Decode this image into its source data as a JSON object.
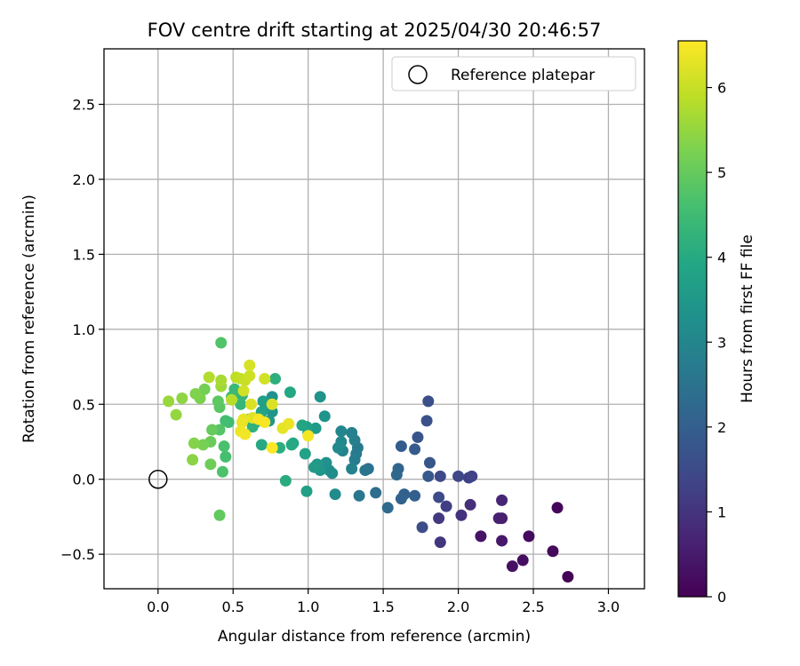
{
  "chart_data": {
    "type": "scatter",
    "title": "FOV centre drift starting at 2025/04/30 20:46:57",
    "xlabel": "Angular distance from reference (arcmin)",
    "ylabel": "Rotation from reference (arcmin)",
    "xlim": [
      -0.36,
      3.24
    ],
    "ylim": [
      -0.73,
      2.87
    ],
    "xticks": [
      0.0,
      0.5,
      1.0,
      1.5,
      2.0,
      2.5,
      3.0
    ],
    "xtick_labels": [
      "0.0",
      "0.5",
      "1.0",
      "1.5",
      "2.0",
      "2.5",
      "3.0"
    ],
    "yticks": [
      -0.5,
      0.0,
      0.5,
      1.0,
      1.5,
      2.0,
      2.5
    ],
    "ytick_labels": [
      "−0.5",
      "0.0",
      "0.5",
      "1.0",
      "1.5",
      "2.0",
      "2.5"
    ],
    "grid": true,
    "legend": {
      "position": "top-right",
      "entries": [
        "Reference platepar"
      ]
    },
    "reference_point": {
      "x": 0.0,
      "y": 0.0,
      "marker": "open-circle"
    },
    "colorbar": {
      "label": "Hours from first FF file",
      "range": [
        0,
        6.55
      ],
      "ticks": [
        0,
        1,
        2,
        3,
        4,
        5,
        6
      ],
      "tick_labels": [
        "0",
        "1",
        "2",
        "3",
        "4",
        "5",
        "6"
      ],
      "colormap": "viridis"
    },
    "points": [
      {
        "x": 2.73,
        "y": -0.65,
        "c": 0.05
      },
      {
        "x": 2.66,
        "y": -0.19,
        "c": 0.1
      },
      {
        "x": 2.63,
        "y": -0.48,
        "c": 0.15
      },
      {
        "x": 2.47,
        "y": -0.38,
        "c": 0.2
      },
      {
        "x": 2.43,
        "y": -0.54,
        "c": 0.25
      },
      {
        "x": 2.36,
        "y": -0.58,
        "c": 0.3
      },
      {
        "x": 2.15,
        "y": -0.38,
        "c": 0.35
      },
      {
        "x": 2.29,
        "y": -0.41,
        "c": 0.45
      },
      {
        "x": 2.29,
        "y": -0.26,
        "c": 0.55
      },
      {
        "x": 2.27,
        "y": -0.26,
        "c": 0.6
      },
      {
        "x": 2.29,
        "y": -0.14,
        "c": 0.7
      },
      {
        "x": 2.08,
        "y": -0.17,
        "c": 0.9
      },
      {
        "x": 2.02,
        "y": -0.24,
        "c": 0.95
      },
      {
        "x": 1.88,
        "y": -0.42,
        "c": 1.05
      },
      {
        "x": 1.87,
        "y": -0.26,
        "c": 1.1
      },
      {
        "x": 1.92,
        "y": -0.18,
        "c": 1.2
      },
      {
        "x": 2.07,
        "y": 0.01,
        "c": 1.25
      },
      {
        "x": 2.09,
        "y": 0.02,
        "c": 1.3
      },
      {
        "x": 2.0,
        "y": 0.02,
        "c": 1.4
      },
      {
        "x": 1.88,
        "y": 0.02,
        "c": 1.45
      },
      {
        "x": 1.87,
        "y": -0.12,
        "c": 1.5
      },
      {
        "x": 1.76,
        "y": -0.32,
        "c": 1.55
      },
      {
        "x": 1.8,
        "y": 0.52,
        "c": 1.6
      },
      {
        "x": 1.79,
        "y": 0.39,
        "c": 1.65
      },
      {
        "x": 1.73,
        "y": 0.28,
        "c": 1.75
      },
      {
        "x": 1.81,
        "y": 0.11,
        "c": 1.8
      },
      {
        "x": 1.8,
        "y": 0.02,
        "c": 1.85
      },
      {
        "x": 1.71,
        "y": 0.2,
        "c": 1.9
      },
      {
        "x": 1.62,
        "y": 0.22,
        "c": 1.95
      },
      {
        "x": 1.71,
        "y": -0.11,
        "c": 2.0
      },
      {
        "x": 1.64,
        "y": -0.1,
        "c": 2.05
      },
      {
        "x": 1.62,
        "y": -0.13,
        "c": 2.1
      },
      {
        "x": 1.6,
        "y": 0.07,
        "c": 2.15
      },
      {
        "x": 1.59,
        "y": 0.03,
        "c": 2.2
      },
      {
        "x": 1.53,
        "y": -0.19,
        "c": 2.25
      },
      {
        "x": 1.45,
        "y": -0.09,
        "c": 2.35
      },
      {
        "x": 1.4,
        "y": 0.07,
        "c": 2.45
      },
      {
        "x": 1.38,
        "y": 0.06,
        "c": 2.55
      },
      {
        "x": 1.34,
        "y": -0.11,
        "c": 2.6
      },
      {
        "x": 1.33,
        "y": 0.21,
        "c": 2.65
      },
      {
        "x": 1.32,
        "y": 0.17,
        "c": 2.7
      },
      {
        "x": 1.31,
        "y": 0.13,
        "c": 2.75
      },
      {
        "x": 1.31,
        "y": 0.26,
        "c": 2.8
      },
      {
        "x": 1.29,
        "y": 0.31,
        "c": 2.85
      },
      {
        "x": 1.29,
        "y": 0.07,
        "c": 2.9
      },
      {
        "x": 1.23,
        "y": 0.19,
        "c": 2.95
      },
      {
        "x": 1.22,
        "y": 0.32,
        "c": 3.0
      },
      {
        "x": 1.22,
        "y": 0.25,
        "c": 3.05
      },
      {
        "x": 1.2,
        "y": 0.21,
        "c": 3.1
      },
      {
        "x": 1.18,
        "y": -0.1,
        "c": 3.15
      },
      {
        "x": 1.16,
        "y": 0.04,
        "c": 3.2
      },
      {
        "x": 1.14,
        "y": 0.06,
        "c": 3.25
      },
      {
        "x": 1.12,
        "y": 0.11,
        "c": 3.3
      },
      {
        "x": 1.11,
        "y": 0.42,
        "c": 3.35
      },
      {
        "x": 1.08,
        "y": 0.55,
        "c": 3.4
      },
      {
        "x": 1.08,
        "y": 0.06,
        "c": 3.45
      },
      {
        "x": 1.06,
        "y": 0.1,
        "c": 3.5
      },
      {
        "x": 1.05,
        "y": 0.34,
        "c": 3.55
      },
      {
        "x": 1.04,
        "y": 0.08,
        "c": 3.6
      },
      {
        "x": 1.0,
        "y": 0.31,
        "c": 3.65
      },
      {
        "x": 0.99,
        "y": -0.08,
        "c": 3.7
      },
      {
        "x": 0.99,
        "y": 0.35,
        "c": 3.75
      },
      {
        "x": 0.98,
        "y": 0.17,
        "c": 3.8
      },
      {
        "x": 0.96,
        "y": 0.36,
        "c": 3.85
      },
      {
        "x": 0.9,
        "y": 0.24,
        "c": 3.9
      },
      {
        "x": 0.88,
        "y": 0.58,
        "c": 3.95
      },
      {
        "x": 0.89,
        "y": 0.23,
        "c": 4.0
      },
      {
        "x": 0.85,
        "y": -0.01,
        "c": 4.05
      },
      {
        "x": 0.81,
        "y": 0.21,
        "c": 4.1
      },
      {
        "x": 0.78,
        "y": 0.67,
        "c": 4.15
      },
      {
        "x": 0.76,
        "y": 0.55,
        "c": 3.3
      },
      {
        "x": 0.76,
        "y": 0.45,
        "c": 3.4
      },
      {
        "x": 0.74,
        "y": 0.39,
        "c": 3.5
      },
      {
        "x": 0.72,
        "y": 0.48,
        "c": 3.6
      },
      {
        "x": 0.7,
        "y": 0.52,
        "c": 3.7
      },
      {
        "x": 0.69,
        "y": 0.45,
        "c": 3.8
      },
      {
        "x": 0.68,
        "y": 0.42,
        "c": 3.9
      },
      {
        "x": 0.69,
        "y": 0.23,
        "c": 4.0
      },
      {
        "x": 0.65,
        "y": 0.38,
        "c": 4.1
      },
      {
        "x": 0.63,
        "y": 0.35,
        "c": 4.2
      },
      {
        "x": 0.61,
        "y": 0.4,
        "c": 4.25
      },
      {
        "x": 0.56,
        "y": 0.56,
        "c": 4.3
      },
      {
        "x": 0.55,
        "y": 0.5,
        "c": 4.35
      },
      {
        "x": 0.51,
        "y": 0.6,
        "c": 4.4
      },
      {
        "x": 0.49,
        "y": 0.55,
        "c": 4.45
      },
      {
        "x": 0.47,
        "y": 0.38,
        "c": 4.5
      },
      {
        "x": 0.45,
        "y": 0.39,
        "c": 4.55
      },
      {
        "x": 0.45,
        "y": 0.15,
        "c": 4.6
      },
      {
        "x": 0.44,
        "y": 0.22,
        "c": 4.65
      },
      {
        "x": 0.43,
        "y": 0.05,
        "c": 4.7
      },
      {
        "x": 0.42,
        "y": 0.91,
        "c": 4.75
      },
      {
        "x": 0.41,
        "y": 0.33,
        "c": 4.8
      },
      {
        "x": 0.41,
        "y": 0.48,
        "c": 4.85
      },
      {
        "x": 0.4,
        "y": 0.52,
        "c": 4.9
      },
      {
        "x": 0.41,
        "y": -0.24,
        "c": 4.95
      },
      {
        "x": 0.36,
        "y": 0.33,
        "c": 5.0
      },
      {
        "x": 0.35,
        "y": 0.25,
        "c": 5.05
      },
      {
        "x": 0.35,
        "y": 0.1,
        "c": 5.1
      },
      {
        "x": 0.31,
        "y": 0.6,
        "c": 5.15
      },
      {
        "x": 0.3,
        "y": 0.23,
        "c": 5.2
      },
      {
        "x": 0.28,
        "y": 0.54,
        "c": 5.25
      },
      {
        "x": 0.25,
        "y": 0.57,
        "c": 5.3
      },
      {
        "x": 0.24,
        "y": 0.24,
        "c": 5.35
      },
      {
        "x": 0.23,
        "y": 0.13,
        "c": 5.4
      },
      {
        "x": 0.16,
        "y": 0.54,
        "c": 5.45
      },
      {
        "x": 0.12,
        "y": 0.43,
        "c": 5.5
      },
      {
        "x": 0.07,
        "y": 0.52,
        "c": 5.55
      },
      {
        "x": 0.42,
        "y": 0.62,
        "c": 5.6
      },
      {
        "x": 0.42,
        "y": 0.66,
        "c": 5.7
      },
      {
        "x": 0.34,
        "y": 0.68,
        "c": 5.8
      },
      {
        "x": 0.49,
        "y": 0.53,
        "c": 5.85
      },
      {
        "x": 0.52,
        "y": 0.68,
        "c": 5.9
      },
      {
        "x": 0.55,
        "y": 0.67,
        "c": 5.95
      },
      {
        "x": 0.58,
        "y": 0.66,
        "c": 6.0
      },
      {
        "x": 0.61,
        "y": 0.69,
        "c": 6.05
      },
      {
        "x": 0.57,
        "y": 0.59,
        "c": 6.1
      },
      {
        "x": 0.61,
        "y": 0.76,
        "c": 6.15
      },
      {
        "x": 0.62,
        "y": 0.5,
        "c": 6.2
      },
      {
        "x": 0.63,
        "y": 0.41,
        "c": 6.25
      },
      {
        "x": 0.57,
        "y": 0.4,
        "c": 6.3
      },
      {
        "x": 0.56,
        "y": 0.38,
        "c": 6.35
      },
      {
        "x": 0.55,
        "y": 0.32,
        "c": 6.4
      },
      {
        "x": 0.58,
        "y": 0.3,
        "c": 6.45
      },
      {
        "x": 0.67,
        "y": 0.4,
        "c": 6.5
      },
      {
        "x": 0.71,
        "y": 0.38,
        "c": 6.5
      },
      {
        "x": 0.71,
        "y": 0.67,
        "c": 6.1
      },
      {
        "x": 0.76,
        "y": 0.5,
        "c": 6.2
      },
      {
        "x": 0.76,
        "y": 0.21,
        "c": 6.55
      },
      {
        "x": 0.83,
        "y": 0.34,
        "c": 6.3
      },
      {
        "x": 0.87,
        "y": 0.37,
        "c": 6.35
      },
      {
        "x": 1.0,
        "y": 0.29,
        "c": 6.45
      }
    ]
  }
}
